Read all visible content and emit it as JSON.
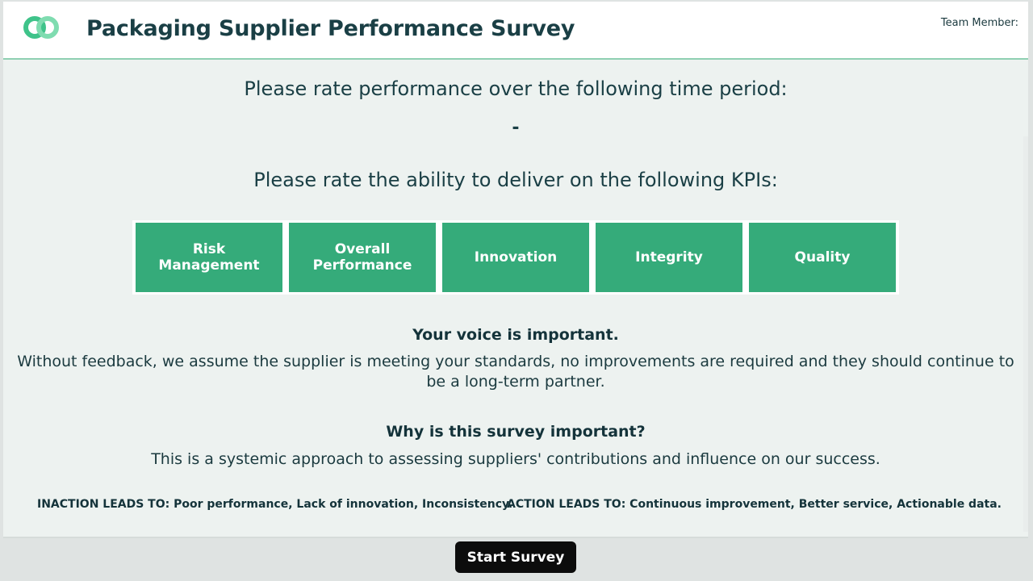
{
  "header": {
    "logo_icon": "link-rings-logo-icon",
    "title": "Packaging Supplier Performance Survey",
    "team_member_label": "Team Member:"
  },
  "period": {
    "prompt": "Please rate performance over the following time period:",
    "value": "-"
  },
  "kpis": {
    "prompt": "Please rate the ability to deliver on the following KPIs:",
    "items": [
      "Risk Management",
      "Overall Performance",
      "Innovation",
      "Integrity",
      "Quality"
    ]
  },
  "voice": {
    "heading": "Your voice is important.",
    "body": "Without feedback, we assume the supplier is meeting your standards, no improvements are required and they should continue to be a long-term partner."
  },
  "why": {
    "heading": "Why is this survey important?",
    "body": "This is a systemic approach to assessing suppliers' contributions and influence on our success."
  },
  "footer_notes": {
    "inaction": "INACTION LEADS TO: Poor performance, Lack of innovation, Inconsistency.",
    "action": "ACTION LEADS TO: Continuous improvement, Better service, Actionable data."
  },
  "start_button": {
    "label": "Start Survey"
  },
  "colors": {
    "accent_green": "#35ab7a",
    "title_text": "#1a3f45",
    "button_bg": "#0c0c0c",
    "panel_bg": "#edf2f0"
  }
}
